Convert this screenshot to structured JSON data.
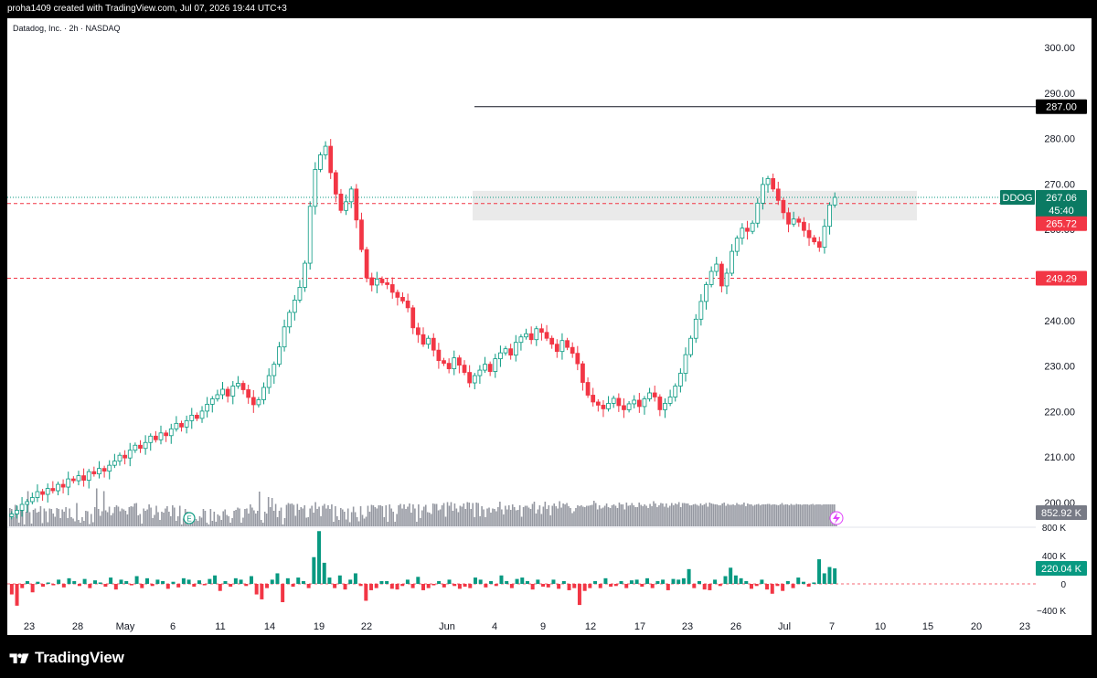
{
  "header": {
    "attribution": "proha1409 created with TradingView.com, Jul 07, 2026 19:44 UTC+3"
  },
  "symbol_line": "Datadog, Inc. · 2h · NASDAQ",
  "brand": {
    "name": "TradingView"
  },
  "colors": {
    "up": "#089981",
    "down": "#f23645",
    "volume": "#9598a1",
    "zone": "#e6e6e6",
    "axis_text": "#131722"
  },
  "price_labels": {
    "ticker": "DDOG",
    "last": "267.06",
    "countdown": "45:40",
    "level_hline": "287.00",
    "level_upper": "265.72",
    "level_lower": "249.29",
    "volume_last": "852.92 K",
    "indicator_last": "220.04 K"
  },
  "indicator_axis": [
    "800 K",
    "400 K",
    "0",
    "−400 K"
  ],
  "earnings_marker": "E",
  "chart_data": {
    "type": "candlestick",
    "title": "Datadog, Inc. · 2h · NASDAQ",
    "xlabel": "",
    "ylabel": "",
    "ylim": [
      195,
      303
    ],
    "y_ticks": [
      200,
      210,
      220,
      230,
      240,
      250,
      260,
      270,
      280,
      290,
      300
    ],
    "x_ticks": [
      "23",
      "28",
      "May",
      "6",
      "11",
      "14",
      "19",
      "22",
      "Jun",
      "4",
      "9",
      "12",
      "17",
      "23",
      "26",
      "Jul",
      "7",
      "10",
      "15",
      "20",
      "23"
    ],
    "grid": false,
    "legend": "none",
    "horizontal_lines": [
      {
        "value": 287.0,
        "style": "solid"
      },
      {
        "value": 265.72,
        "style": "dashed"
      },
      {
        "value": 249.29,
        "style": "dashed"
      }
    ],
    "zone": {
      "from": 262.0,
      "to": 268.5
    },
    "series": [
      {
        "name": "Price",
        "close": [
          197.5,
          198.3,
          199.6,
          200.2,
          201.1,
          202.4,
          201.8,
          203.1,
          202.6,
          204.0,
          203.4,
          205.2,
          204.8,
          205.9,
          204.9,
          206.8,
          206.3,
          207.5,
          206.9,
          208.2,
          209.1,
          210.4,
          209.8,
          211.5,
          212.6,
          211.9,
          213.2,
          214.6,
          213.8,
          215.3,
          214.7,
          216.2,
          217.4,
          216.6,
          218.0,
          219.2,
          218.5,
          220.1,
          221.6,
          222.8,
          223.7,
          224.9,
          223.4,
          225.6,
          226.2,
          224.8,
          223.1,
          221.5,
          222.6,
          225.3,
          227.9,
          230.4,
          234.2,
          238.6,
          241.8,
          244.5,
          247.3,
          252.6,
          265.1,
          273.2,
          276.4,
          278.3,
          272.5,
          267.8,
          264.2,
          266.1,
          268.9,
          262.1,
          255.6,
          249.4,
          247.8,
          249.1,
          248.3,
          247.9,
          246.2,
          245.1,
          244.3,
          242.8,
          238.4,
          236.9,
          234.8,
          236.1,
          233.5,
          231.2,
          230.6,
          229.4,
          231.8,
          230.2,
          228.6,
          226.3,
          227.9,
          229.1,
          230.4,
          228.8,
          231.6,
          232.9,
          233.8,
          232.4,
          235.2,
          236.4,
          237.1,
          235.8,
          238.2,
          237.4,
          236.1,
          234.8,
          233.2,
          235.6,
          234.1,
          232.8,
          230.5,
          226.4,
          223.6,
          222.1,
          221.4,
          220.6,
          221.8,
          222.9,
          221.3,
          220.4,
          221.7,
          222.5,
          221.1,
          222.8,
          224.1,
          223.2,
          220.4,
          221.8,
          223.2,
          225.6,
          228.4,
          232.5,
          236.1,
          240.3,
          244.2,
          247.9,
          250.8,
          252.4,
          247.6,
          250.4,
          255.2,
          258.1,
          260.3,
          259.6,
          261.4,
          265.8,
          269.9,
          271.2,
          268.9,
          266.4,
          263.7,
          261.2,
          262.3,
          261.6,
          259.8,
          258.2,
          257.3,
          256.1,
          260.7,
          265.4,
          267.06
        ]
      },
      {
        "name": "Volume",
        "values_k": [
          1020,
          1010,
          920,
          1055,
          1040,
          860,
          1010,
          1000,
          820,
          980,
          1205,
          975,
          850,
          1000,
          1015,
          970,
          980,
          1040,
          855,
          1015,
          985,
          865,
          1015,
          1010,
          960,
          925,
          1020,
          1010,
          910,
          1005,
          980,
          1030,
          910,
          1015,
          920,
          905,
          875,
          1075,
          890,
          860,
          920,
          880,
          990,
          985,
          845,
          955,
          865,
          1030,
          1235,
          1010,
          935,
          985,
          1205,
          995,
          975,
          1035,
          940,
          965,
          1030,
          1050,
          1035,
          985,
          1015,
          1005,
          990,
          950,
          1030,
          1040,
          1035,
          1070,
          1075,
          940,
          955,
          850,
          1015,
          990,
          1005,
          1060,
          1025,
          910,
          945,
          1045,
          975,
          890,
          980,
          970,
          1015,
          1040,
          980,
          930,
          1050,
          1025,
          880,
          930,
          1045,
          840,
          905,
          1010,
          980,
          835,
          900,
          880,
          880,
          900,
          880,
          930,
          915,
          1010,
          990,
          860,
          835,
          1010,
          880,
          980,
          870,
          950,
          935,
          890,
          985,
          1005,
          945,
          930,
          860,
          910,
          990,
          1000,
          1025,
          1015,
          860,
          915,
          1010,
          1015,
          960,
          1060,
          1025,
          995,
          960,
          990,
          1200,
          890,
          860,
          980,
          960,
          1140,
          1030,
          1130,
          990,
          1065,
          920,
          990,
          1025,
          835,
          910,
          1055,
          1075,
          1065,
          1070,
          1055,
          935,
          1065,
          1000,
          1030,
          1015,
          1050,
          915,
          920,
          1015,
          1045,
          970,
          1085,
          1010,
          1035,
          930,
          1045,
          1065,
          1015,
          1050,
          1010,
          1060,
          870,
          1040,
          930,
          890,
          1020,
          1005,
          980,
          895,
          1015,
          865,
          975,
          1035,
          975,
          920,
          875,
          1040,
          945,
          905,
          925,
          1045,
          980,
          1055,
          1050,
          1030,
          1015,
          1050,
          1050,
          1040,
          920,
          1050,
          870,
          1060,
          1015,
          980,
          870,
          955,
          1050,
          1065,
          1015,
          1060,
          1010,
          1035,
          1070,
          970,
          1060,
          1015,
          870,
          1060,
          910,
          995,
          1035,
          1055,
          975,
          970,
          955,
          1070,
          1065,
          1065,
          995,
          1005,
          1050,
          1075,
          925,
          1085,
          1045,
          1085,
          990,
          1070,
          1015,
          975,
          1045,
          1035,
          1070,
          1010,
          1085,
          1080,
          1010,
          1075,
          920,
          1080,
          1075,
          930,
          1040,
          1005,
          920,
          1015,
          1025,
          970,
          1015,
          1010,
          985,
          1030,
          1090,
          1005,
          950,
          1045,
          1005,
          1050,
          1000,
          1060,
          1030,
          995,
          1000,
          1050,
          925,
          1030,
          1045,
          1045,
          1025,
          1010,
          1065,
          1090,
          960,
          1005,
          1050,
          955,
          1035,
          1090,
          1010,
          1050,
          940,
          1045,
          1070,
          1040,
          1015,
          1095,
          1025,
          1070,
          1060,
          1075,
          1040,
          1020,
          965,
          985,
          1020,
          1050,
          1040,
          1050,
          1035,
          1030,
          1045,
          1045,
          1050,
          1055,
          1100,
          1075,
          1005,
          1050,
          1015,
          1025,
          1045,
          1070,
          1030,
          1020,
          1050,
          1060,
          1045,
          1020,
          1080,
          1060,
          1060,
          1005,
          1080,
          1045,
          1050,
          1075,
          1050,
          1030,
          1030,
          1080,
          1055,
          1040,
          1060,
          1045,
          1020,
          1065,
          1040,
          1095,
          1070,
          1030,
          1050,
          1075,
          1070,
          1035,
          1070,
          1025,
          1045,
          1075,
          1050,
          1070,
          1060,
          1085,
          1030,
          1075,
          1075,
          1070,
          1070,
          1050,
          1050,
          1060,
          1065,
          1055,
          1045,
          1070,
          1050,
          1060,
          1075,
          1035,
          1080,
          1070,
          1065,
          1060,
          1060,
          1050,
          1050,
          1070,
          1080,
          1045,
          1065,
          1055,
          1055,
          1060,
          1050,
          1075,
          1060,
          1055,
          1060,
          1080,
          1040,
          1070,
          1060,
          1060,
          1045,
          1055,
          1060,
          1065,
          1050,
          1060,
          1060,
          1060,
          1065,
          1065,
          1055,
          1060,
          1060,
          1055,
          1050,
          1060,
          1075,
          1055,
          1060,
          1060,
          1050,
          1065,
          1055,
          1055,
          1065,
          1060,
          1060,
          1055,
          1060,
          1060,
          1060,
          1055,
          1060,
          1065,
          1055,
          1060,
          1060,
          1060,
          1055,
          1060,
          1060,
          1060,
          1060,
          1060,
          1060,
          1060,
          852.92
        ]
      },
      {
        "name": "Indicator",
        "values_k": [
          -150,
          -310,
          -60,
          40,
          -120,
          30,
          -40,
          20,
          -20,
          60,
          -50,
          80,
          40,
          -30,
          70,
          -60,
          50,
          20,
          -40,
          90,
          -80,
          60,
          40,
          -20,
          110,
          -60,
          80,
          -30,
          60,
          40,
          -70,
          30,
          -50,
          80,
          60,
          -40,
          50,
          -20,
          70,
          120,
          -100,
          40,
          -40,
          80,
          60,
          -30,
          110,
          -150,
          -220,
          -60,
          60,
          150,
          -260,
          80,
          -40,
          90,
          40,
          -60,
          380,
          750,
          300,
          90,
          -60,
          120,
          -80,
          60,
          150,
          -30,
          -240,
          -90,
          -60,
          40,
          40,
          -70,
          -80,
          -30,
          60,
          -60,
          100,
          -90,
          -60,
          -20,
          40,
          -50,
          60,
          -30,
          -70,
          -40,
          -60,
          90,
          60,
          -50,
          40,
          -30,
          120,
          40,
          -60,
          70,
          90,
          40,
          -80,
          60,
          -40,
          -50,
          60,
          -70,
          40,
          -90,
          -60,
          -300,
          -100,
          -60,
          40,
          -60,
          80,
          -40,
          -30,
          40,
          -60,
          50,
          60,
          -40,
          80,
          -60,
          40,
          60,
          -90,
          70,
          60,
          80,
          210,
          -60,
          40,
          -80,
          -90,
          60,
          -30,
          110,
          230,
          120,
          80,
          40,
          -70,
          -30,
          60,
          -80,
          -140,
          -30,
          -100,
          40,
          -60,
          90,
          30,
          -40,
          20,
          350,
          150,
          240,
          220.04
        ]
      }
    ]
  }
}
